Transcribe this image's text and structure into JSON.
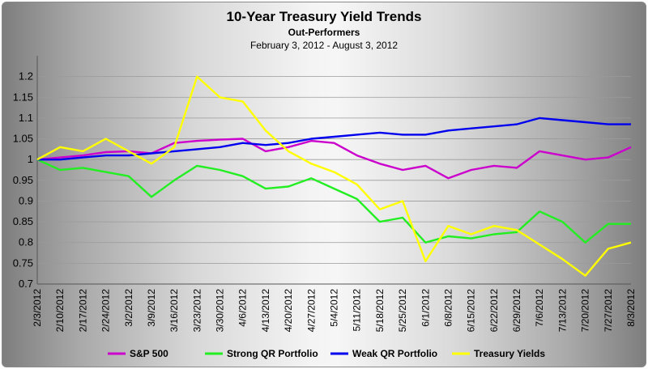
{
  "chart_data": {
    "type": "line",
    "title": "10-Year Treasury Yield Trends",
    "subtitle": "Out-Performers",
    "date_range": "February 3, 2012 - August 3, 2012",
    "ylim": [
      0.7,
      1.25
    ],
    "yticks": [
      "1.2",
      "1.15",
      "1.1",
      "1.05",
      "1",
      "0.95",
      "0.9",
      "0.85",
      "0.8",
      "0.75",
      "0.7"
    ],
    "ytick_values": [
      1.2,
      1.15,
      1.1,
      1.05,
      1.0,
      0.95,
      0.9,
      0.85,
      0.8,
      0.75,
      0.7
    ],
    "grid": true,
    "legend_position": "bottom",
    "x_labels": [
      "2/3/2012",
      "2/10/2012",
      "2/17/2012",
      "2/24/2012",
      "3/2/2012",
      "3/9/2012",
      "3/16/2012",
      "3/23/2012",
      "3/30/2012",
      "4/6/2012",
      "4/13/2012",
      "4/20/2012",
      "4/27/2012",
      "5/4/2012",
      "5/11/2012",
      "5/18/2012",
      "5/25/2012",
      "6/1/2012",
      "6/8/2012",
      "6/15/2012",
      "6/22/2012",
      "6/29/2012",
      "7/6/2012",
      "7/13/2012",
      "7/20/2012",
      "7/27/2012",
      "8/3/2012"
    ],
    "series": [
      {
        "name": "S&P 500",
        "color": "#cc00cc",
        "values": [
          1.0,
          1.005,
          1.01,
          1.018,
          1.02,
          1.015,
          1.04,
          1.045,
          1.048,
          1.05,
          1.02,
          1.03,
          1.045,
          1.04,
          1.01,
          0.99,
          0.975,
          0.985,
          0.955,
          0.975,
          0.985,
          0.98,
          1.02,
          1.01,
          1.0,
          1.005,
          1.03
        ]
      },
      {
        "name": "Strong QR Portfolio",
        "color": "#22ee22",
        "values": [
          1.0,
          0.975,
          0.98,
          0.97,
          0.96,
          0.91,
          0.95,
          0.985,
          0.975,
          0.96,
          0.93,
          0.935,
          0.955,
          0.93,
          0.905,
          0.85,
          0.86,
          0.8,
          0.815,
          0.81,
          0.82,
          0.825,
          0.875,
          0.85,
          0.8,
          0.845,
          0.845
        ]
      },
      {
        "name": "Weak QR Portfolio",
        "color": "#0000ee",
        "values": [
          1.0,
          1.0,
          1.005,
          1.01,
          1.01,
          1.015,
          1.02,
          1.025,
          1.03,
          1.04,
          1.035,
          1.04,
          1.05,
          1.055,
          1.06,
          1.065,
          1.06,
          1.06,
          1.07,
          1.075,
          1.08,
          1.085,
          1.1,
          1.095,
          1.09,
          1.085,
          1.085
        ]
      },
      {
        "name": "Treasury Yields",
        "color": "#ffff00",
        "values": [
          1.0,
          1.03,
          1.02,
          1.05,
          1.02,
          0.99,
          1.03,
          1.2,
          1.15,
          1.14,
          1.07,
          1.02,
          0.99,
          0.97,
          0.94,
          0.88,
          0.9,
          0.755,
          0.84,
          0.82,
          0.84,
          0.83,
          0.795,
          0.76,
          0.72,
          0.785,
          0.8
        ]
      }
    ]
  }
}
